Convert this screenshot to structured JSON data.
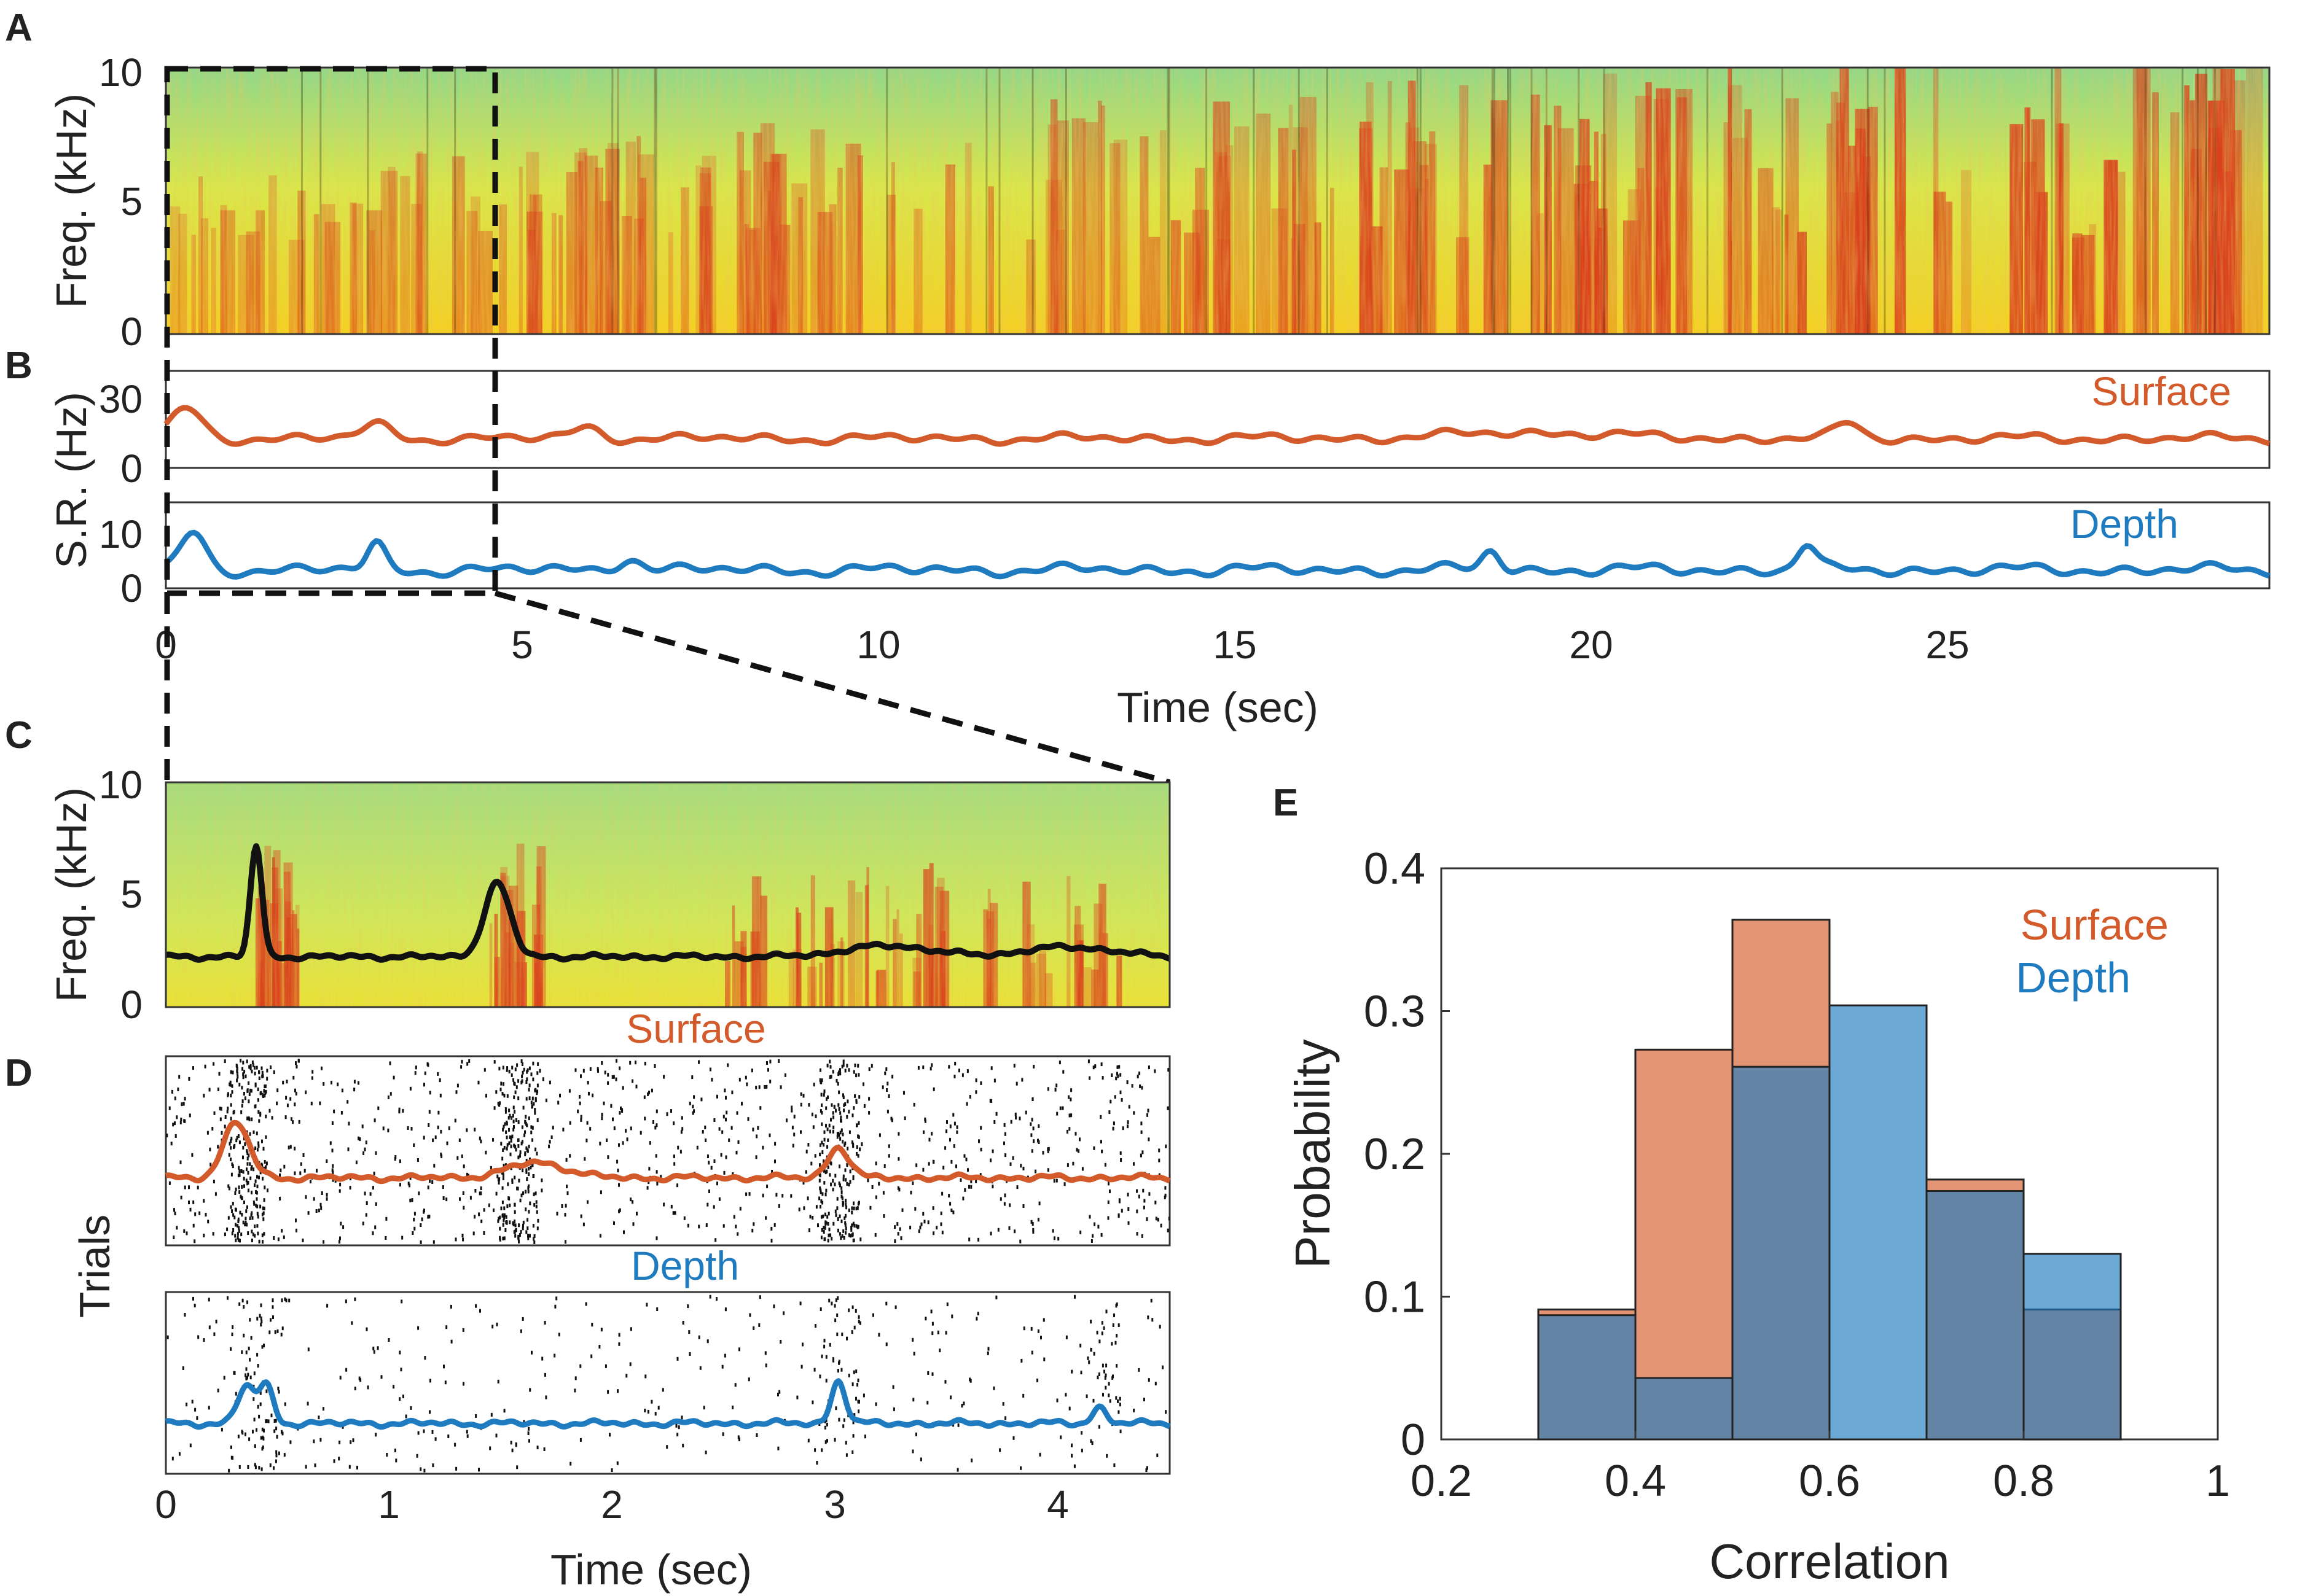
{
  "panels": {
    "A": "A",
    "B": "B",
    "C": "C",
    "D": "D",
    "E": "E"
  },
  "colors": {
    "surface": "#d35a2a",
    "depth": "#1f7bbf",
    "black": "#111111",
    "spec_bg": "#9ad87c",
    "spec_hot": "#d8401c"
  },
  "panel_a": {
    "ylabel": "Freq. (kHz)",
    "yticks": [
      "0",
      "5",
      "10"
    ],
    "ylim": [
      0,
      10
    ],
    "xlim": [
      0,
      29.5
    ]
  },
  "panel_b": {
    "ylabel": "S.R. (Hz)",
    "surface_label": "Surface",
    "depth_label": "Depth",
    "surface_yticks": [
      "0",
      "30"
    ],
    "depth_yticks": [
      "0",
      "10"
    ],
    "xticks": [
      "0",
      "5",
      "10",
      "15",
      "20",
      "25"
    ],
    "xlabel": "Time (sec)"
  },
  "panel_c": {
    "ylabel": "Freq. (kHz)",
    "yticks": [
      "0",
      "5",
      "10"
    ],
    "xlim": [
      0,
      4.5
    ]
  },
  "panel_d": {
    "ylabel": "Trials",
    "surface_title": "Surface",
    "depth_title": "Depth",
    "xticks": [
      "0",
      "1",
      "2",
      "3",
      "4"
    ],
    "xlabel": "Time (sec)"
  },
  "chart_data": {
    "type": "bar",
    "title": "",
    "xlabel": "Correlation",
    "ylabel": "Probability",
    "xlim": [
      0.2,
      1.0
    ],
    "ylim": [
      0,
      0.4
    ],
    "xticks": [
      "0.2",
      "0.4",
      "0.6",
      "0.8",
      "1"
    ],
    "yticks": [
      "0",
      "0.1",
      "0.2",
      "0.3",
      "0.4"
    ],
    "bin_edges": [
      0.3,
      0.4,
      0.5,
      0.6,
      0.7,
      0.8,
      0.9
    ],
    "series": [
      {
        "name": "Surface",
        "values": [
          0.091,
          0.273,
          0.364,
          0.0,
          0.182,
          0.091
        ]
      },
      {
        "name": "Depth",
        "values": [
          0.087,
          0.043,
          0.261,
          0.304,
          0.174,
          0.13
        ]
      }
    ],
    "legend": [
      "Surface",
      "Depth"
    ]
  }
}
